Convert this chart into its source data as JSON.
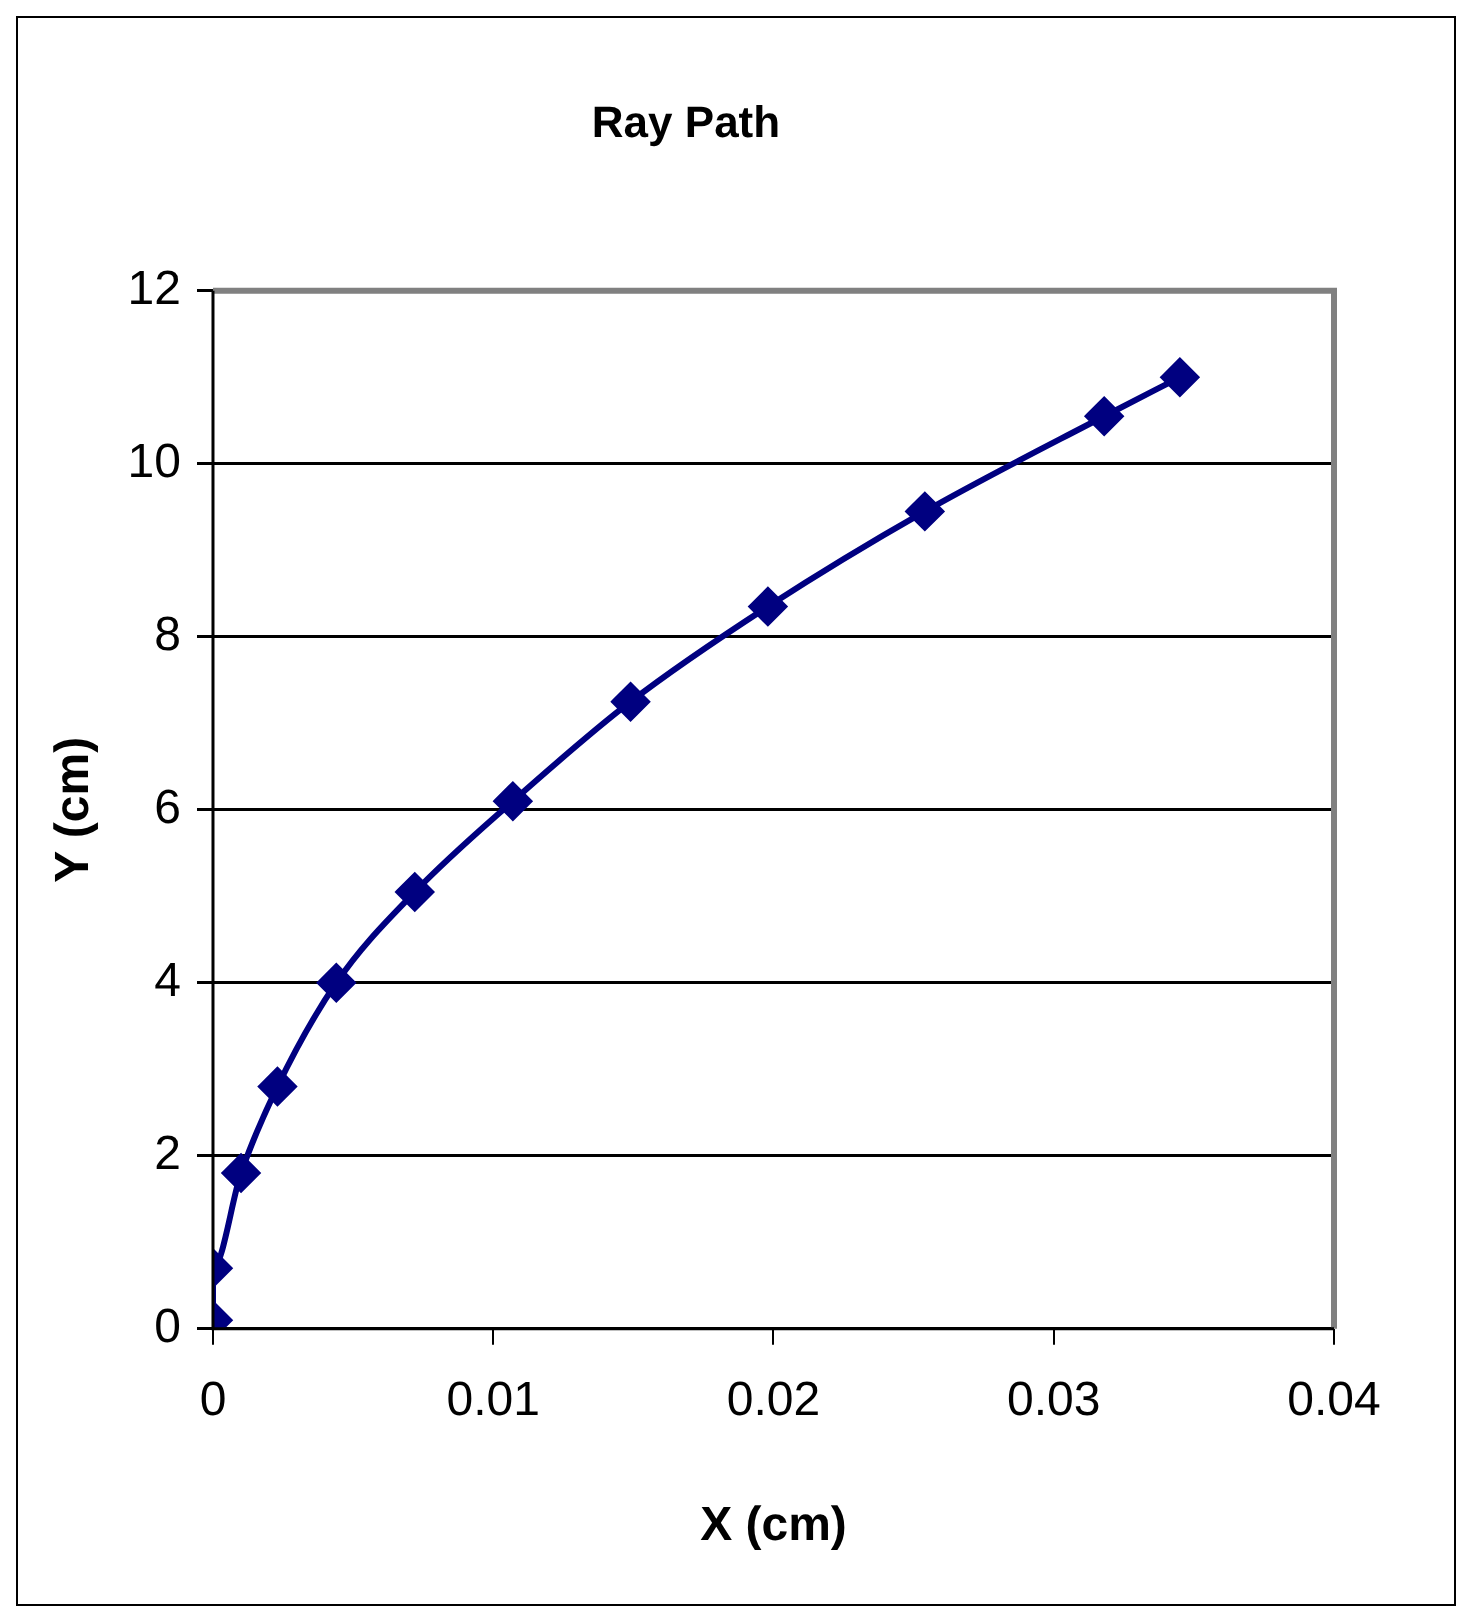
{
  "chart_data": {
    "type": "line",
    "title": "Ray Path",
    "xlabel": "X (cm)",
    "ylabel": "Y (cm)",
    "x": [
      0,
      0,
      0.001,
      0.0023,
      0.0044,
      0.0072,
      0.0107,
      0.0149,
      0.0198,
      0.0254,
      0.0318,
      0.0345
    ],
    "series": [
      {
        "color": "#000080",
        "values": [
          0.1,
          0.7,
          1.8,
          2.8,
          4.0,
          5.05,
          6.1,
          7.25,
          8.35,
          9.45,
          10.55,
          11.0
        ]
      }
    ],
    "xlim": [
      0,
      0.04
    ],
    "xticks": [
      0,
      0.01,
      0.02,
      0.03,
      0.04
    ],
    "ylim": [
      0,
      12
    ],
    "yticks": [
      0,
      2,
      4,
      6,
      8,
      10,
      12
    ],
    "grid": "y",
    "legend": false,
    "marker": "diamond",
    "line_style": "solid"
  }
}
